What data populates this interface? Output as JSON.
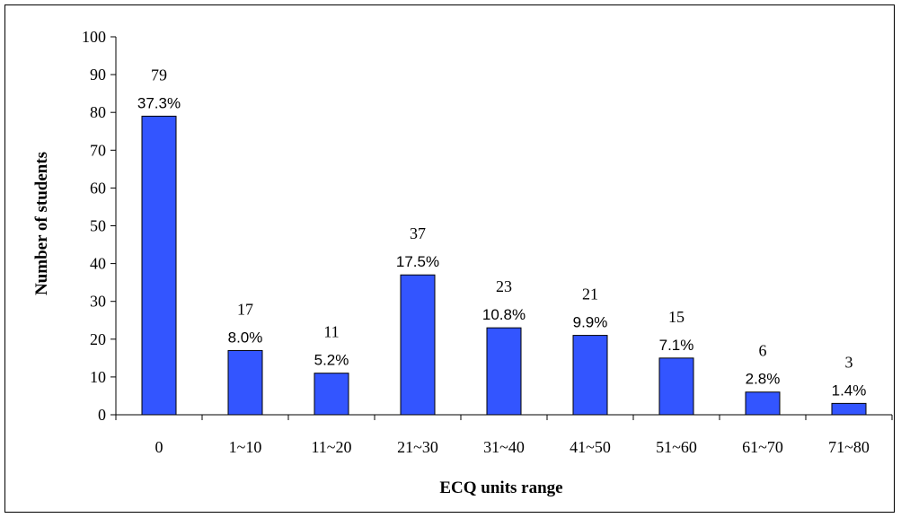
{
  "chart_data": {
    "type": "bar",
    "title": "",
    "xlabel": "ECQ units range",
    "ylabel": "Number of students",
    "categories": [
      "0",
      "1~10",
      "11~20",
      "21~30",
      "31~40",
      "41~50",
      "51~60",
      "61~70",
      "71~80"
    ],
    "values": [
      79,
      17,
      11,
      37,
      23,
      21,
      15,
      6,
      3
    ],
    "percent_labels": [
      "37.3%",
      "8.0%",
      "5.2%",
      "17.5%",
      "10.8%",
      "9.9%",
      "7.1%",
      "2.8%",
      "1.4%"
    ],
    "ylim": [
      0,
      100
    ],
    "yticks": [
      "0",
      "10",
      "20",
      "30",
      "40",
      "50",
      "60",
      "70",
      "80",
      "90",
      "100"
    ],
    "grid": false,
    "legend": "none",
    "bar_color": "#3355ff",
    "bar_border_color": "#000000"
  }
}
